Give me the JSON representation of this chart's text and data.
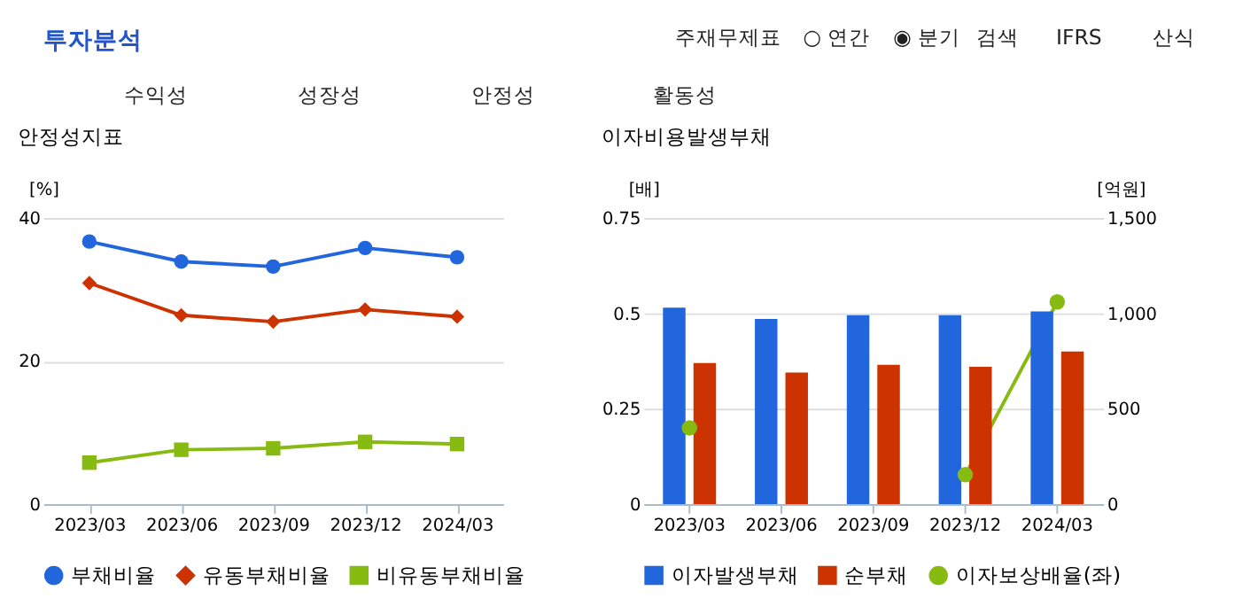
{
  "chart_data": [
    {
      "type": "other",
      "title": "투자분석",
      "annotations": [
        "주재무제표",
        "○ 연간",
        "◉ 분기",
        "검색",
        "IFRS",
        "산식",
        "수익성",
        "성장성",
        "안정성",
        "활동성"
      ]
    },
    {
      "type": "line",
      "title": "안정성지표",
      "ylabel": "[%]",
      "categories": [
        "2023/03",
        "2023/06",
        "2023/09",
        "2023/12",
        "2024/03"
      ],
      "ylim": [
        0,
        40
      ],
      "yticks": [
        0,
        20,
        40
      ],
      "grid": "y",
      "legend": "bottom",
      "series": [
        {
          "name": "부채비율",
          "color": "#2266dd",
          "marker": "circle",
          "values": [
            36.7,
            33.9,
            33.2,
            35.8,
            34.5
          ]
        },
        {
          "name": "유동부채비율",
          "color": "#cc3300",
          "marker": "diamond",
          "values": [
            30.9,
            26.4,
            25.5,
            27.2,
            26.2
          ]
        },
        {
          "name": "비유동부채비율",
          "color": "#88bb11",
          "marker": "square",
          "values": [
            5.8,
            7.6,
            7.8,
            8.7,
            8.4
          ]
        }
      ]
    },
    {
      "type": "bar",
      "title": "이자비용발생부채",
      "ylabel": "[배]",
      "y2label": "[억원]",
      "categories": [
        "2023/03",
        "2023/06",
        "2023/09",
        "2023/12",
        "2024/03"
      ],
      "ylim": [
        0,
        0.75
      ],
      "yticks": [
        0,
        0.25,
        0.5,
        0.75
      ],
      "y2lim": [
        0,
        1500
      ],
      "y2ticks": [
        0,
        500,
        {
          "value": 1000,
          "label": "1,000"
        },
        {
          "value": 1500,
          "label": "1,500"
        }
      ],
      "grid": "y",
      "legend": "bottom",
      "series": [
        {
          "name": "이자발생부채",
          "color": "#2266dd",
          "axis": "y2",
          "values": [
            1030,
            970,
            990,
            990,
            1010
          ]
        },
        {
          "name": "순부채",
          "color": "#cc3300",
          "axis": "y2",
          "values": [
            740,
            690,
            730,
            720,
            800
          ]
        },
        {
          "name": "이자보상배율(좌)",
          "type": "line",
          "color": "#88bb11",
          "marker": "circle",
          "values": [
            0.2,
            null,
            null,
            0.077,
            0.53
          ]
        }
      ]
    }
  ]
}
